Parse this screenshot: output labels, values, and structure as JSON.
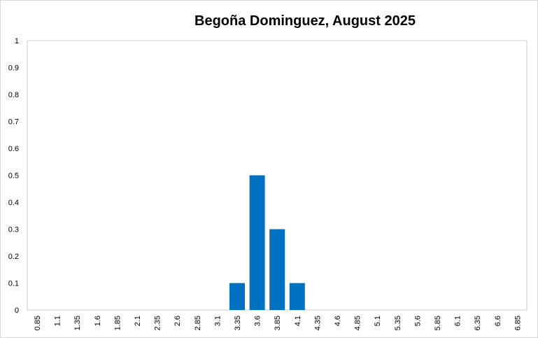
{
  "chart_data": {
    "type": "bar",
    "title": "Begoña Dominguez, August 2025",
    "xlabel": "",
    "ylabel": "",
    "categories": [
      "0.85",
      "1.1",
      "1.35",
      "1.6",
      "1.85",
      "2.1",
      "2.35",
      "2.6",
      "2.85",
      "3.1",
      "3.35",
      "3.6",
      "3.85",
      "4.1",
      "4.35",
      "4.6",
      "4.85",
      "5.1",
      "5.35",
      "5.6",
      "5.85",
      "6.1",
      "6.35",
      "6.6",
      "6.85"
    ],
    "values": [
      0,
      0,
      0,
      0,
      0,
      0,
      0,
      0,
      0,
      0,
      0.1,
      0.5,
      0.3,
      0.1,
      0,
      0,
      0,
      0,
      0,
      0,
      0,
      0,
      0,
      0,
      0
    ],
    "ylim": [
      0,
      1
    ],
    "yticks": [
      "0",
      "0.1",
      "0.2",
      "0.3",
      "0.4",
      "0.5",
      "0.6",
      "0.7",
      "0.8",
      "0.9",
      "1"
    ],
    "grid": false,
    "bar_color": "#0070c0"
  }
}
